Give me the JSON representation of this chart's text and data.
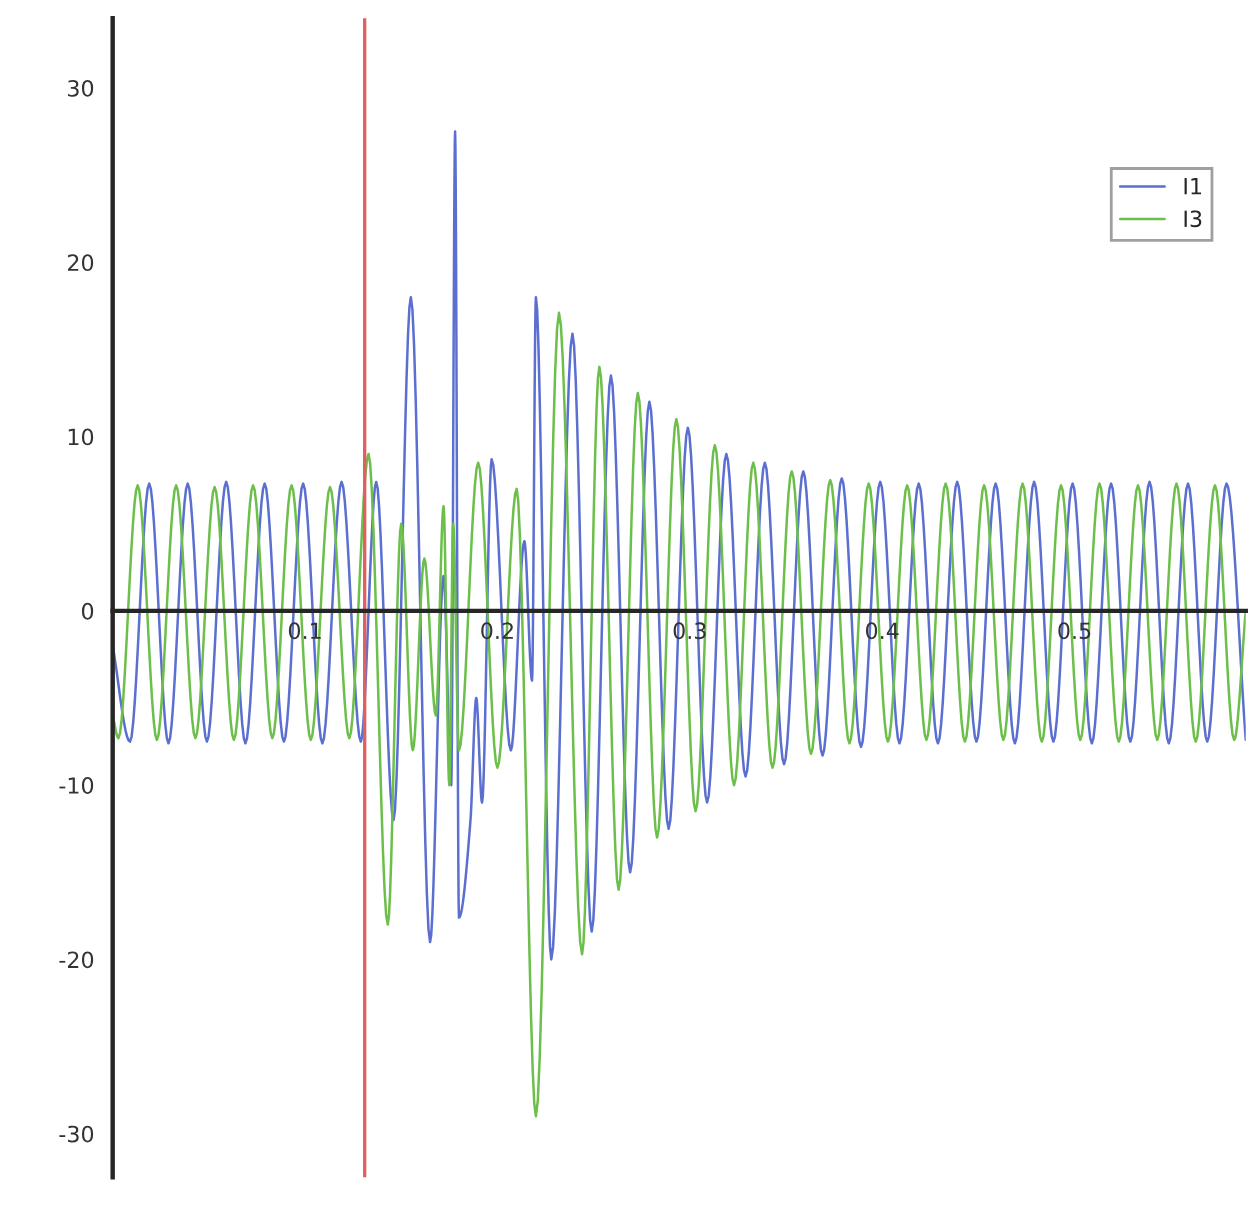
{
  "chart_data": {
    "type": "line",
    "xlim": [
      0,
      0.589
    ],
    "ylim": [
      -32.5,
      34
    ],
    "xticks": [
      0.1,
      0.2,
      0.3,
      0.4,
      0.5
    ],
    "yticks": [
      -30,
      -20,
      -10,
      {
        "value": 0,
        "label": "0"
      },
      10,
      20,
      30
    ],
    "grid": false,
    "legend": "top right",
    "line_style": "solid",
    "marker": "none",
    "ref_lines": [
      {
        "axis": "x",
        "value": 0.131,
        "label": null,
        "color": "#e06060"
      }
    ],
    "series": [
      {
        "name": "I1",
        "color": "#5b6fd0",
        "x": [
          0,
          0.009,
          0.019,
          0.029,
          0.039,
          0.049,
          0.059,
          0.069,
          0.079,
          0.089,
          0.099,
          0.109,
          0.119,
          0.129,
          0.137,
          0.146,
          0.155,
          0.165,
          0.172,
          0.176,
          0.178,
          0.18,
          0.186,
          0.189,
          0.192,
          0.197,
          0.207,
          0.214,
          0.218,
          0.22,
          0.228,
          0.239,
          0.249,
          0.259,
          0.269,
          0.279,
          0.289,
          0.299,
          0.309,
          0.319,
          0.329,
          0.339,
          0.349,
          0.359,
          0.369,
          0.379,
          0.389,
          0.399,
          0.409,
          0.419,
          0.429,
          0.439,
          0.449,
          0.459,
          0.469,
          0.479,
          0.489,
          0.499,
          0.509,
          0.519,
          0.529,
          0.539,
          0.549,
          0.559,
          0.569,
          0.579,
          0.589
        ],
        "values": [
          -2,
          -7.5,
          7.3,
          -7.6,
          7.3,
          -7.5,
          7.4,
          -7.6,
          7.3,
          -7.5,
          7.3,
          -7.6,
          7.4,
          -7.5,
          7.4,
          -12,
          18,
          -19,
          2,
          -10,
          27.5,
          -17.6,
          -12,
          -5,
          -11,
          8.7,
          -8,
          4,
          -4,
          18,
          -20,
          15.9,
          -18.4,
          13.5,
          -15,
          12,
          -12.5,
          10.5,
          -11,
          9,
          -9.5,
          8.5,
          -8.8,
          8,
          -8.3,
          7.6,
          -7.8,
          7.4,
          -7.6,
          7.3,
          -7.6,
          7.4,
          -7.5,
          7.3,
          -7.6,
          7.4,
          -7.5,
          7.3,
          -7.6,
          7.3,
          -7.5,
          7.4,
          -7.6,
          7.3,
          -7.5,
          7.3,
          -7.4
        ]
      },
      {
        "name": "I3",
        "color": "#6cbf4a",
        "x": [
          0,
          0.003,
          0.013,
          0.023,
          0.033,
          0.043,
          0.053,
          0.063,
          0.073,
          0.083,
          0.093,
          0.103,
          0.113,
          0.123,
          0.133,
          0.143,
          0.15,
          0.156,
          0.162,
          0.168,
          0.172,
          0.175,
          0.177,
          0.18,
          0.19,
          0.2,
          0.21,
          0.22,
          0.232,
          0.244,
          0.253,
          0.263,
          0.273,
          0.283,
          0.293,
          0.303,
          0.313,
          0.323,
          0.333,
          0.343,
          0.353,
          0.363,
          0.373,
          0.383,
          0.393,
          0.403,
          0.413,
          0.423,
          0.433,
          0.443,
          0.453,
          0.463,
          0.473,
          0.483,
          0.493,
          0.503,
          0.513,
          0.523,
          0.533,
          0.543,
          0.553,
          0.563,
          0.573,
          0.583,
          0.589
        ],
        "values": [
          -6,
          -7.3,
          7.2,
          -7.4,
          7.2,
          -7.3,
          7.1,
          -7.4,
          7.2,
          -7.3,
          7.2,
          -7.4,
          7.1,
          -7.3,
          9,
          -18,
          5,
          -8,
          3,
          -6,
          6,
          -10,
          5,
          -8,
          8.5,
          -9,
          7,
          -29,
          17.1,
          -19.7,
          14,
          -16,
          12.5,
          -13,
          11,
          -11.5,
          9.5,
          -10,
          8.5,
          -9,
          8,
          -8.2,
          7.5,
          -7.6,
          7.3,
          -7.5,
          7.2,
          -7.4,
          7.3,
          -7.5,
          7.2,
          -7.4,
          7.3,
          -7.5,
          7.2,
          -7.4,
          7.3,
          -7.5,
          7.2,
          -7.4,
          7.3,
          -7.5,
          7.2,
          -7.4,
          0
        ]
      }
    ]
  }
}
